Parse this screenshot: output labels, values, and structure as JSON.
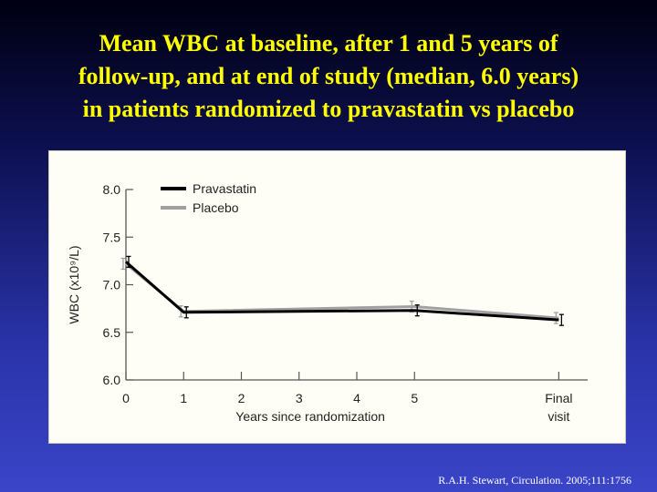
{
  "title_lines": [
    "Mean WBC at baseline, after 1 and 5 years of",
    "follow-up, and at end of study (median, 6.0 years)",
    "in patients randomized to pravastatin vs placebo"
  ],
  "citation": "R.A.H. Stewart, Circulation. 2005;111:1756",
  "chart_data": {
    "type": "line",
    "xlabel": "Years since randomization",
    "ylabel": "WBC (x10⁹/L)",
    "x_ticks": [
      "0",
      "1",
      "2",
      "3",
      "4",
      "5",
      "Final visit"
    ],
    "x_tick_values": [
      0,
      1,
      2,
      3,
      4,
      5,
      7.5
    ],
    "y_ticks": [
      "6.0",
      "6.5",
      "7.0",
      "7.5",
      "8.0"
    ],
    "ylim": [
      6.0,
      8.0
    ],
    "xlim": [
      0,
      8
    ],
    "legend_position": "top-left",
    "series": [
      {
        "name": "Pravastatin",
        "color": "#000000",
        "x": [
          0,
          1,
          5,
          7.5
        ],
        "values": [
          7.24,
          6.71,
          6.73,
          6.63
        ]
      },
      {
        "name": "Placebo",
        "color": "#a0a0a0",
        "x": [
          0,
          1,
          5,
          7.5
        ],
        "values": [
          7.22,
          6.72,
          6.77,
          6.65
        ]
      }
    ]
  }
}
